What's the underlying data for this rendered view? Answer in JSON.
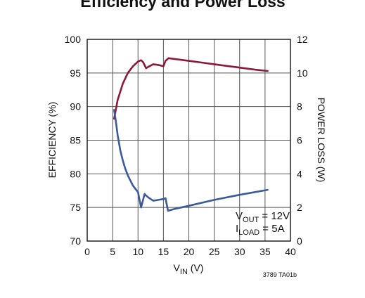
{
  "chart_data": {
    "type": "line",
    "title": "Efficiency and Power Loss",
    "xlabel": {
      "main": "V",
      "sub": "IN",
      "unit": " (V)"
    },
    "ylabel_left": "EFFICIENCY (%)",
    "ylabel_right": "POWER LOSS (W)",
    "xlim": [
      0,
      40
    ],
    "ylim_left": [
      70,
      100
    ],
    "ylim_right": [
      0,
      12
    ],
    "x_ticks": [
      "0",
      "5",
      "10",
      "15",
      "20",
      "25",
      "30",
      "35",
      "40"
    ],
    "y_ticks_left": [
      "70",
      "75",
      "80",
      "85",
      "90",
      "95",
      "100"
    ],
    "y_ticks_right": [
      "0",
      "2",
      "4",
      "6",
      "8",
      "10",
      "12"
    ],
    "grid": true,
    "series": [
      {
        "axis": "left",
        "color": "#8b1a3a",
        "x": [
          5.3,
          6,
          7,
          8,
          9,
          10,
          10.6,
          11,
          11.6,
          12,
          13,
          14,
          15,
          15.4,
          16,
          18,
          20,
          22,
          25,
          28,
          30,
          33,
          35.5
        ],
        "y": [
          88.2,
          91.0,
          93.4,
          95.0,
          96.0,
          96.7,
          96.9,
          96.6,
          95.7,
          95.9,
          96.3,
          96.2,
          96.0,
          96.8,
          97.2,
          97.0,
          96.8,
          96.6,
          96.3,
          96.0,
          95.8,
          95.5,
          95.3
        ]
      },
      {
        "axis": "right",
        "color": "#3a5a9b",
        "x": [
          5.3,
          5.6,
          6,
          6.5,
          7,
          7.5,
          8,
          9,
          10,
          10.6,
          11.3,
          11.6,
          12,
          13,
          14,
          15,
          15.4,
          15.9,
          17,
          20,
          25,
          30,
          35.5
        ],
        "y": [
          7.8,
          7.2,
          6.3,
          5.4,
          4.8,
          4.3,
          3.9,
          3.3,
          2.9,
          2.0,
          2.8,
          2.7,
          2.6,
          2.4,
          2.45,
          2.5,
          2.55,
          1.8,
          1.9,
          2.1,
          2.45,
          2.75,
          3.05
        ]
      }
    ],
    "annotations": [
      {
        "main": "V",
        "sub": "OUT",
        "rest": " = 12V"
      },
      {
        "main": "I",
        "sub": "LOAD",
        "rest": " = 5A"
      }
    ],
    "figure_id": "3789 TA01b"
  }
}
